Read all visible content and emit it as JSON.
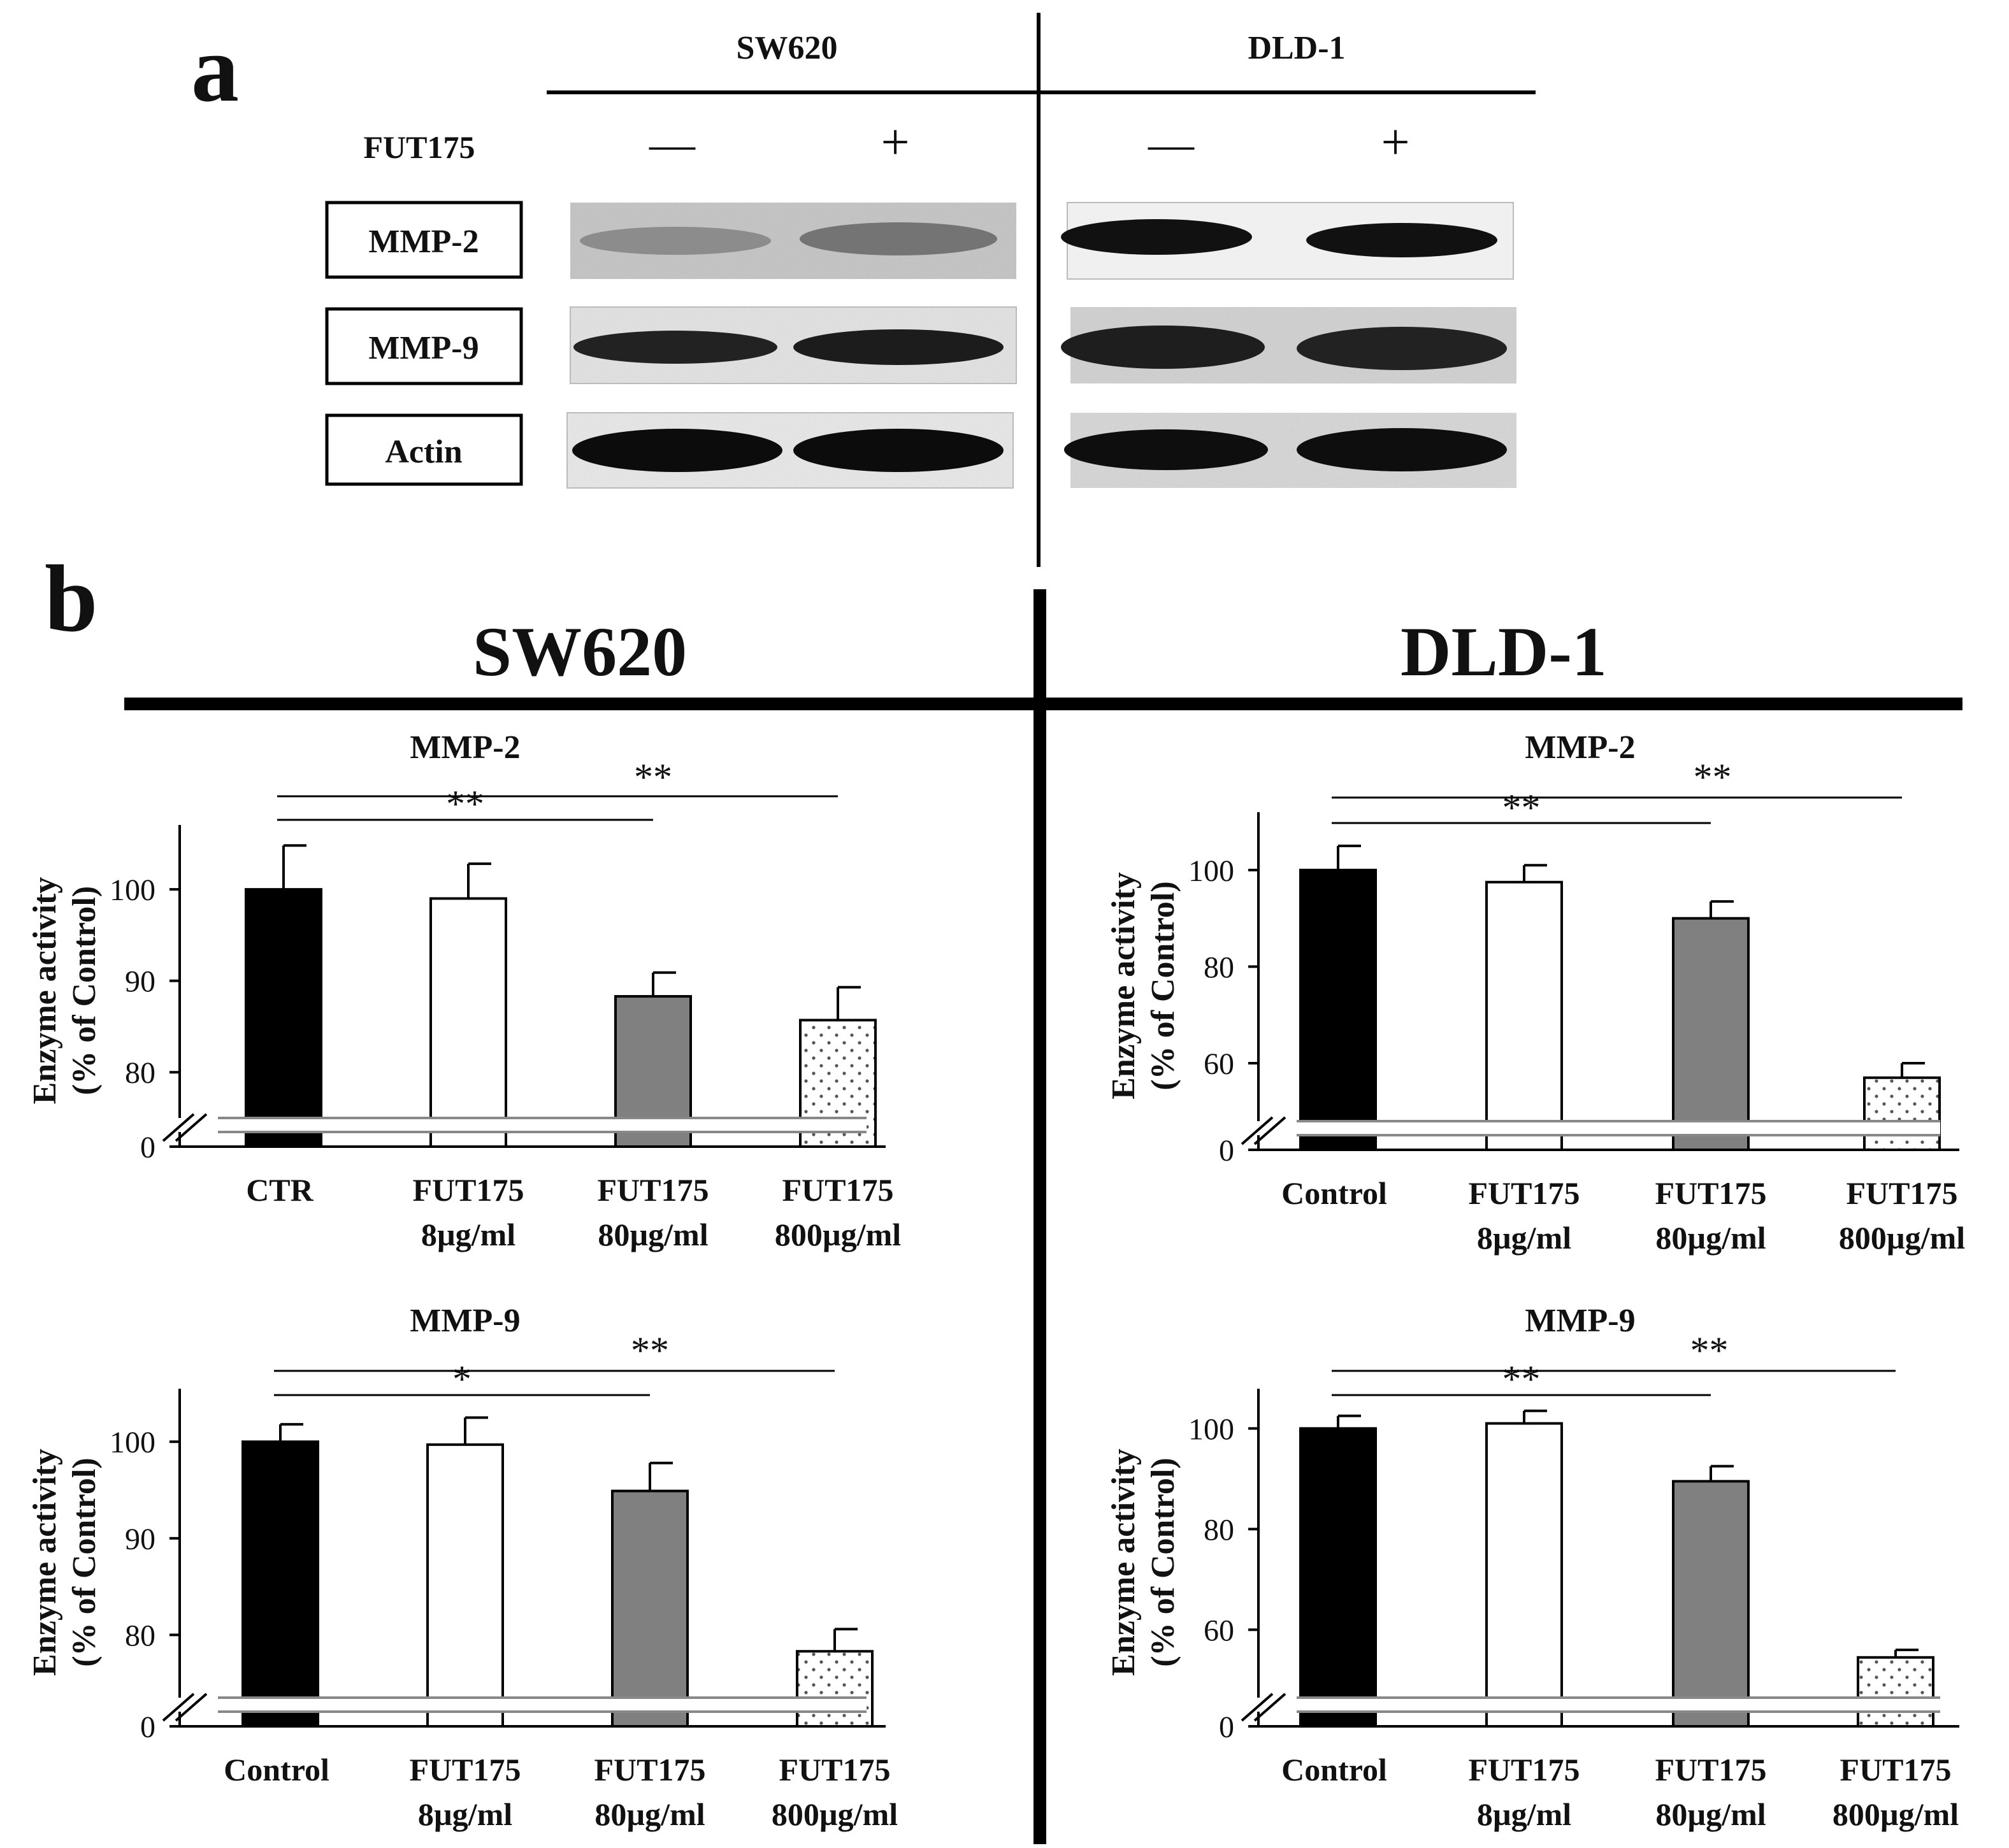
{
  "panel_a": {
    "label": "a",
    "cell_lines": [
      "SW620",
      "DLD-1"
    ],
    "treatment_label": "FUT175",
    "treatment_signs": [
      "—",
      "+",
      "—",
      "+"
    ],
    "proteins": [
      "MMP-2",
      "MMP-9",
      "Actin"
    ]
  },
  "panel_b": {
    "label": "b",
    "cell_lines": [
      "SW620",
      "DLD-1"
    ]
  },
  "chart_data": [
    {
      "type": "bar",
      "cell_line": "SW620",
      "title": "MMP-2",
      "ylabel": "Enzyme activity\n(% of Control)",
      "categories": [
        "CTR",
        "FUT175\n8µg/ml",
        "FUT175\n80µg/ml",
        "FUT175\n800µg/ml"
      ],
      "values": [
        100,
        99,
        88.3,
        85.7
      ],
      "errors": [
        4.8,
        3.8,
        2.6,
        3.6
      ],
      "ylim": [
        0,
        100
      ],
      "axis_break": true,
      "visible_range": [
        75,
        106
      ],
      "yticks": [
        0,
        80,
        90,
        100
      ],
      "bar_styles": [
        "solid-black",
        "white",
        "gray",
        "dotted"
      ],
      "significance": [
        {
          "from": 0,
          "to": 2,
          "label": "**"
        },
        {
          "from": 0,
          "to": 3,
          "label": "**"
        }
      ]
    },
    {
      "type": "bar",
      "cell_line": "DLD-1",
      "title": "MMP-2",
      "ylabel": "Enzyme activity\n(% of Control)",
      "categories": [
        "Control",
        "FUT175\n8µg/ml",
        "FUT175\n80µg/ml",
        "FUT175\n800µg/ml"
      ],
      "values": [
        100,
        97.5,
        90,
        57
      ],
      "errors": [
        5,
        3.5,
        3.5,
        3
      ],
      "ylim": [
        0,
        100
      ],
      "axis_break": true,
      "visible_range": [
        48,
        110
      ],
      "yticks": [
        0,
        60,
        80,
        100
      ],
      "bar_styles": [
        "solid-black",
        "white",
        "gray",
        "dotted"
      ],
      "significance": [
        {
          "from": 0,
          "to": 2,
          "label": "**"
        },
        {
          "from": 0,
          "to": 3,
          "label": "**"
        }
      ]
    },
    {
      "type": "bar",
      "cell_line": "SW620",
      "title": "MMP-9",
      "ylabel": "Enzyme activity\n(% of Control)",
      "categories": [
        "Control",
        "FUT175\n8µg/ml",
        "FUT175\n80µg/ml",
        "FUT175\n800µg/ml"
      ],
      "values": [
        100,
        99.7,
        94.9,
        78.3
      ],
      "errors": [
        1.8,
        2.8,
        2.9,
        2.3
      ],
      "ylim": [
        0,
        100
      ],
      "axis_break": true,
      "visible_range": [
        73.5,
        104.5
      ],
      "yticks": [
        0,
        80,
        90,
        100
      ],
      "bar_styles": [
        "solid-black",
        "white",
        "gray",
        "dotted"
      ],
      "significance": [
        {
          "from": 0,
          "to": 2,
          "label": "*"
        },
        {
          "from": 0,
          "to": 3,
          "label": "**"
        }
      ]
    },
    {
      "type": "bar",
      "cell_line": "DLD-1",
      "title": "MMP-9",
      "ylabel": "Enzyme activity\n(% of Control)",
      "categories": [
        "Control",
        "FUT175\n8µg/ml",
        "FUT175\n80µg/ml",
        "FUT175\n800µg/ml"
      ],
      "values": [
        100,
        101,
        89.5,
        54.5
      ],
      "errors": [
        2.5,
        2.5,
        3,
        1.5
      ],
      "ylim": [
        0,
        100
      ],
      "axis_break": true,
      "visible_range": [
        46.5,
        106
      ],
      "yticks": [
        0,
        60,
        80,
        100
      ],
      "bar_styles": [
        "solid-black",
        "white",
        "gray",
        "dotted"
      ],
      "significance": [
        {
          "from": 0,
          "to": 2,
          "label": "**"
        },
        {
          "from": 0,
          "to": 3,
          "label": "**"
        }
      ]
    }
  ]
}
